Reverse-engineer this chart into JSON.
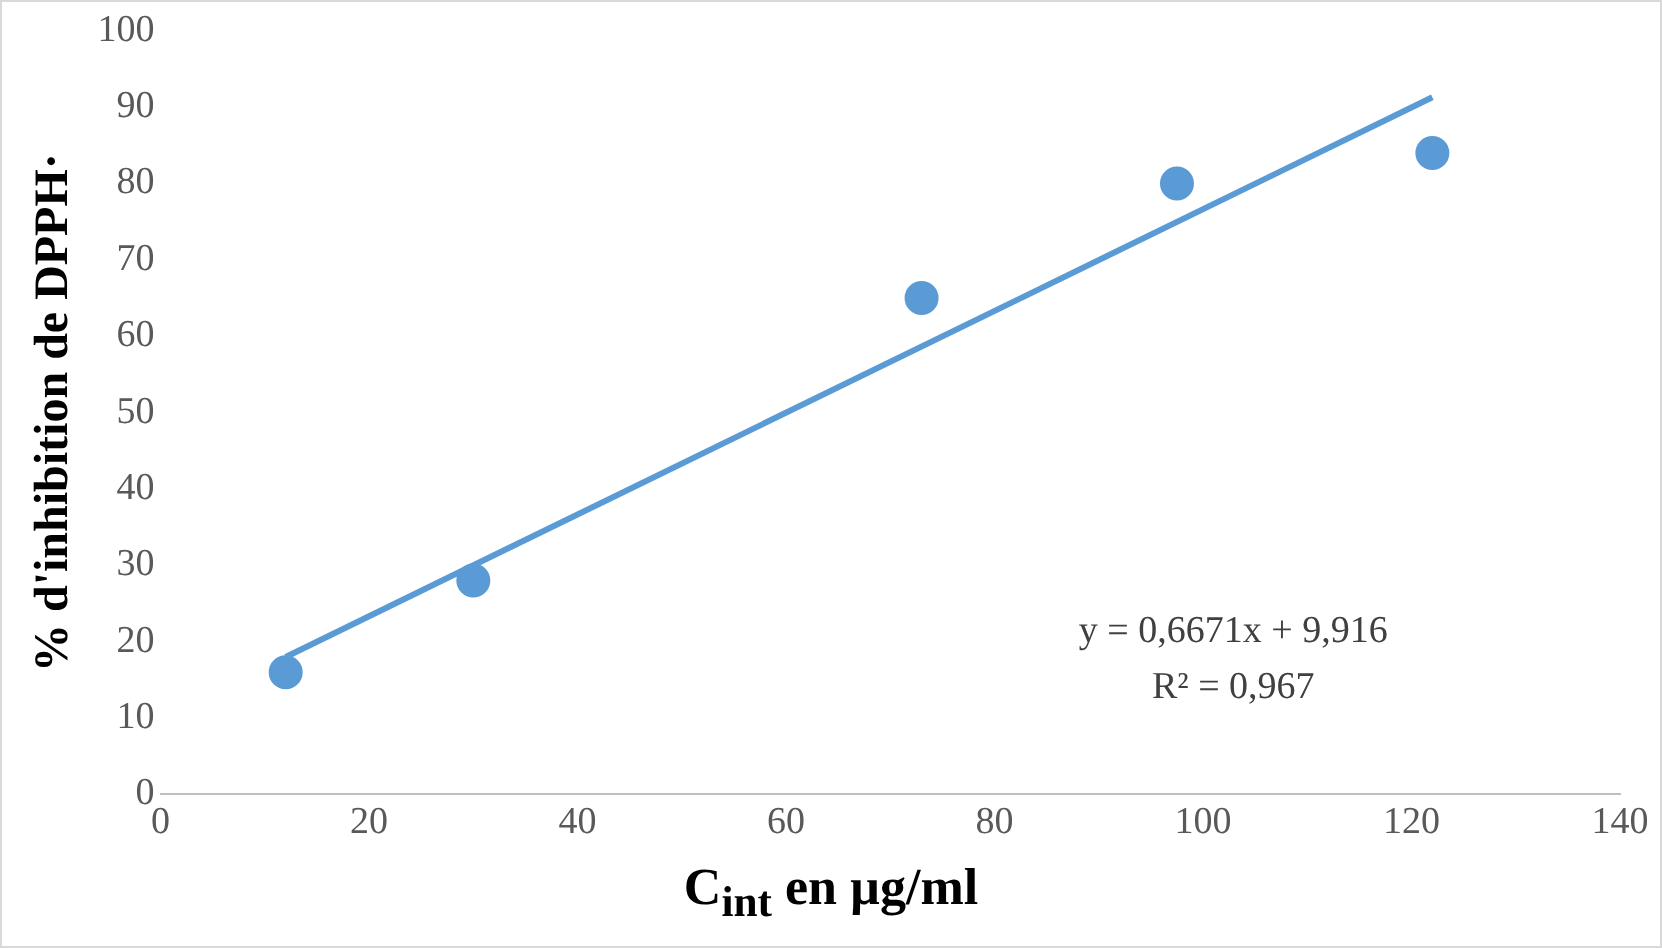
{
  "chart_data": {
    "type": "scatter",
    "ylabel": "% d'inhibition de DPPH·",
    "xlabel": "C$_{int}$ en µg/ml",
    "x": [
      12,
      30,
      73,
      97.5,
      122
    ],
    "series": [
      {
        "type": "scatter",
        "color": "#5b9bd5",
        "values": [
          16,
          28,
          65,
          80,
          84
        ],
        "marker": "circle"
      },
      {
        "type": "line",
        "color": "#5b9bd5",
        "x": [
          12,
          122
        ],
        "values": [
          18,
          91.3
        ],
        "marker": "none",
        "line_style": "solid"
      }
    ],
    "xlim": [
      0,
      140
    ],
    "xticks": [
      0,
      20,
      40,
      60,
      80,
      100,
      120,
      140
    ],
    "ylim": [
      0,
      100
    ],
    "yticks": [
      0,
      10,
      20,
      30,
      40,
      50,
      60,
      70,
      80,
      90,
      100
    ],
    "grid": false,
    "legend": false,
    "annotations": [
      "y = 0,6671x + 9,916",
      "R² = 0,967"
    ]
  }
}
